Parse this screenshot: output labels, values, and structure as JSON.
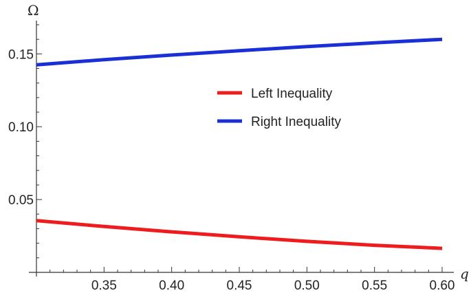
{
  "chart_data": {
    "type": "line",
    "xlabel": "q",
    "ylabel": "Ω",
    "xlim": [
      0.3,
      0.6
    ],
    "ylim": [
      0.0,
      0.17
    ],
    "xticks": [
      0.35,
      0.4,
      0.45,
      0.5,
      0.55,
      0.6
    ],
    "xtick_labels": [
      "0.35",
      "0.40",
      "0.45",
      "0.50",
      "0.55",
      "0.60"
    ],
    "yticks": [
      0.05,
      0.1,
      0.15
    ],
    "ytick_labels": [
      "0.05",
      "0.10",
      "0.15"
    ],
    "grid": false,
    "legend_position": "center-right",
    "series": [
      {
        "name": "Left Inequality",
        "color": "#ee1c1c",
        "x": [
          0.3,
          0.35,
          0.4,
          0.45,
          0.5,
          0.55,
          0.6
        ],
        "y": [
          0.0355,
          0.0315,
          0.0278,
          0.0244,
          0.0213,
          0.0186,
          0.0165
        ]
      },
      {
        "name": "Right Inequality",
        "color": "#1a2fd6",
        "x": [
          0.3,
          0.35,
          0.4,
          0.45,
          0.5,
          0.55,
          0.6
        ],
        "y": [
          0.1425,
          0.146,
          0.1492,
          0.1522,
          0.155,
          0.1576,
          0.16
        ]
      }
    ]
  }
}
